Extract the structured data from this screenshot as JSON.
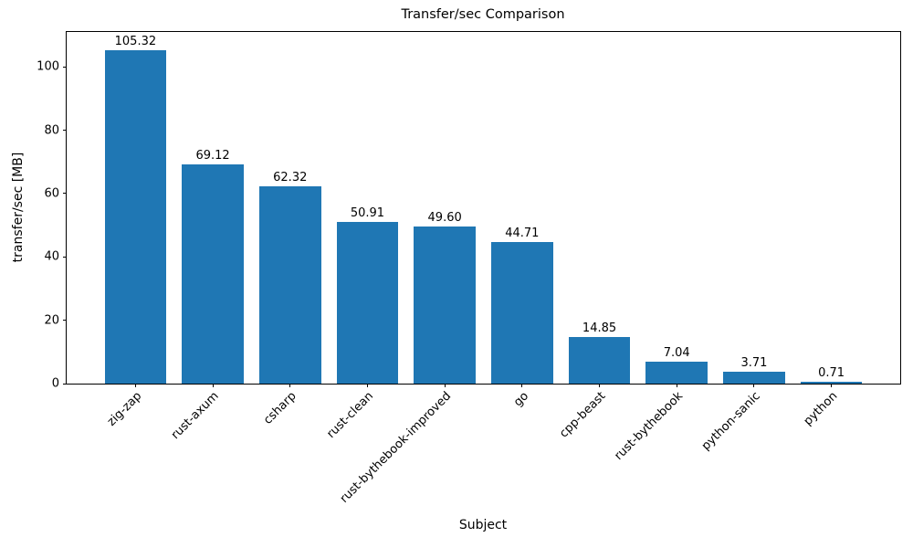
{
  "figure": {
    "background": "#ffffff"
  },
  "chart_data": {
    "type": "bar",
    "title": "Transfer/sec Comparison",
    "xlabel": "Subject",
    "ylabel": "transfer/sec [MB]",
    "categories": [
      "zig-zap",
      "rust-axum",
      "csharp",
      "rust-clean",
      "rust-bythebook-improved",
      "go",
      "cpp-beast",
      "rust-bythebook",
      "python-sanic",
      "python"
    ],
    "values": [
      105.32,
      69.12,
      62.32,
      50.91,
      49.6,
      44.71,
      14.85,
      7.04,
      3.71,
      0.71
    ],
    "value_label_decimals": 2,
    "bar_color": "#1f77b4",
    "axis_color": "#000000",
    "yticks": [
      0,
      20,
      40,
      60,
      80,
      100
    ],
    "ylim": [
      0,
      111
    ],
    "xlim": [
      -0.89,
      9.89
    ],
    "bar_width": 0.8,
    "grid": false,
    "legend_position": "none",
    "xtick_rotation_deg": 45
  }
}
